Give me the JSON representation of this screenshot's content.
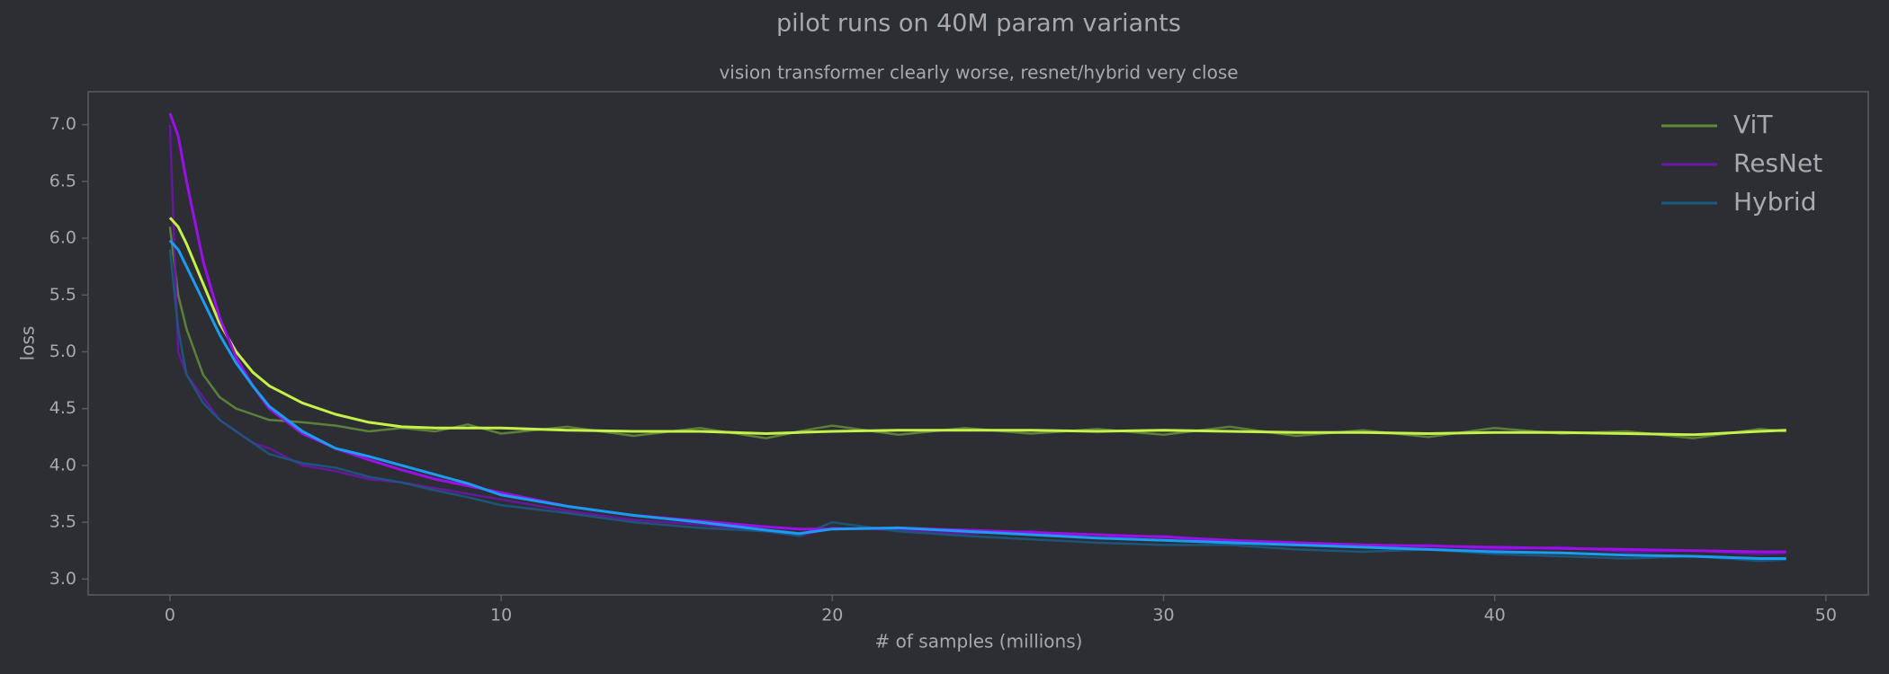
{
  "chart_data": {
    "type": "line",
    "title": "pilot runs on 40M param variants",
    "subtitle": "vision transformer clearly worse, resnet/hybrid very close",
    "x_label": "# of samples (millions)",
    "y_label": "loss",
    "x": [
      0,
      0.25,
      0.5,
      1,
      1.5,
      2,
      2.5,
      3,
      4,
      5,
      6,
      7,
      8,
      9,
      10,
      12,
      14,
      16,
      18,
      19,
      20,
      22,
      24,
      26,
      28,
      30,
      32,
      34,
      36,
      38,
      40,
      42,
      44,
      46,
      48,
      48.8
    ],
    "series": [
      {
        "name": "ViT",
        "color": "#5f8a3a",
        "smoothed_color": "#c6f04a",
        "values": [
          6.1,
          5.5,
          5.2,
          4.8,
          4.6,
          4.5,
          4.45,
          4.4,
          4.38,
          4.35,
          4.3,
          4.33,
          4.3,
          4.36,
          4.28,
          4.34,
          4.26,
          4.33,
          4.24,
          4.3,
          4.35,
          4.27,
          4.33,
          4.28,
          4.32,
          4.27,
          4.34,
          4.26,
          4.31,
          4.25,
          4.33,
          4.28,
          4.3,
          4.24,
          4.32,
          4.3
        ],
        "smoothed": [
          6.18,
          6.1,
          5.95,
          5.6,
          5.25,
          5.0,
          4.82,
          4.7,
          4.55,
          4.45,
          4.38,
          4.34,
          4.33,
          4.33,
          4.33,
          4.31,
          4.3,
          4.3,
          4.28,
          4.29,
          4.3,
          4.31,
          4.31,
          4.31,
          4.3,
          4.31,
          4.3,
          4.29,
          4.29,
          4.28,
          4.29,
          4.29,
          4.28,
          4.27,
          4.3,
          4.31
        ]
      },
      {
        "name": "ResNet",
        "color": "#6a16a8",
        "smoothed_color": "#9b10e8",
        "values": [
          7.0,
          5.0,
          4.8,
          4.6,
          4.4,
          4.3,
          4.2,
          4.15,
          4.0,
          3.95,
          3.88,
          3.85,
          3.8,
          3.75,
          3.7,
          3.6,
          3.52,
          3.48,
          3.42,
          3.38,
          3.45,
          3.43,
          3.4,
          3.42,
          3.36,
          3.38,
          3.32,
          3.3,
          3.28,
          3.3,
          3.26,
          3.28,
          3.24,
          3.25,
          3.22,
          3.23
        ],
        "smoothed": [
          7.1,
          6.9,
          6.5,
          5.8,
          5.3,
          4.95,
          4.7,
          4.5,
          4.28,
          4.15,
          4.05,
          3.96,
          3.88,
          3.82,
          3.76,
          3.64,
          3.56,
          3.51,
          3.46,
          3.44,
          3.44,
          3.45,
          3.43,
          3.41,
          3.39,
          3.37,
          3.34,
          3.32,
          3.3,
          3.29,
          3.28,
          3.27,
          3.26,
          3.25,
          3.24,
          3.24
        ]
      },
      {
        "name": "Hybrid",
        "color": "#1b5a80",
        "smoothed_color": "#1a9cf0",
        "values": [
          5.9,
          5.2,
          4.8,
          4.55,
          4.4,
          4.3,
          4.2,
          4.1,
          4.02,
          3.98,
          3.9,
          3.85,
          3.78,
          3.72,
          3.65,
          3.58,
          3.5,
          3.45,
          3.42,
          3.38,
          3.5,
          3.42,
          3.38,
          3.35,
          3.32,
          3.3,
          3.3,
          3.26,
          3.24,
          3.26,
          3.22,
          3.2,
          3.18,
          3.2,
          3.16,
          3.17
        ],
        "smoothed": [
          5.98,
          5.9,
          5.75,
          5.45,
          5.15,
          4.9,
          4.7,
          4.52,
          4.3,
          4.15,
          4.08,
          4.0,
          3.92,
          3.84,
          3.74,
          3.64,
          3.56,
          3.5,
          3.43,
          3.4,
          3.44,
          3.45,
          3.42,
          3.39,
          3.36,
          3.34,
          3.32,
          3.3,
          3.28,
          3.26,
          3.24,
          3.23,
          3.21,
          3.2,
          3.18,
          3.18
        ]
      }
    ],
    "xlim": [
      -2.47,
      51.28
    ],
    "xticks": [
      0,
      10,
      20,
      30,
      40,
      50
    ],
    "ylim": [
      2.86,
      7.29
    ],
    "yticks": [
      {
        "value": 3,
        "label": "3.0"
      },
      3.5,
      {
        "value": 4,
        "label": "4.0"
      },
      4.5,
      {
        "value": 5,
        "label": "5.0"
      },
      5.5,
      {
        "value": 6,
        "label": "6.0"
      },
      6.5,
      {
        "value": 7,
        "label": "7.0"
      }
    ],
    "grid": false,
    "legend": "upper right"
  }
}
